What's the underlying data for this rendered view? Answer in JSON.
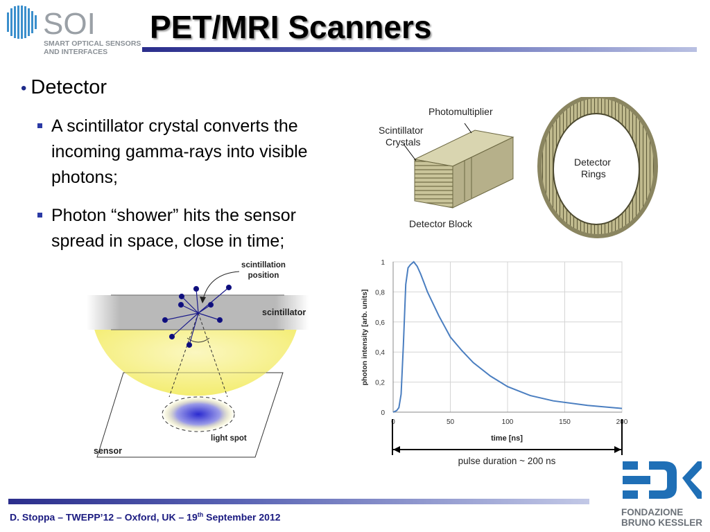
{
  "slide": {
    "title": "PET/MRI Scanners",
    "bullet": "Detector",
    "subbullets": [
      {
        "lines": [
          "A scintillator crystal converts the",
          "incoming gamma-rays into visible",
          "photons;"
        ]
      },
      {
        "lines": [
          "Photon “shower” hits the sensor",
          "spread in space, close in time;"
        ]
      }
    ],
    "footer": {
      "prefix": "D. Stoppa – TWEPP’12 – Oxford, UK –  19",
      "sup": "th",
      "suffix": " September 2012"
    }
  },
  "logos": {
    "soi": {
      "mark": "SOI",
      "line1": "SMART OPTICAL SENSORS",
      "line2": "AND INTERFACES"
    },
    "fbk": {
      "line1": "FONDAZIONE",
      "line2": "BRUNO KESSLER"
    }
  },
  "detector_figure": {
    "photomultiplier": "Photomultiplier",
    "crystals_l1": "Scintillator",
    "crystals_l2": "Crystals",
    "block": "Detector Block",
    "rings_l1": "Detector",
    "rings_l2": "Rings"
  },
  "light_figure": {
    "position_l1": "scintillation",
    "position_l2": "position",
    "scintillator": "scintillator",
    "light_spot": "light spot",
    "sensor": "sensor"
  },
  "chart_data": {
    "type": "line",
    "xlabel": "time [ns]",
    "ylabel": "photon intensity [arb. units]",
    "xlim": [
      0,
      200
    ],
    "ylim": [
      0,
      1
    ],
    "x_ticks": [
      0,
      50,
      100,
      150,
      200
    ],
    "y_ticks": [
      "0",
      "0,2",
      "0,4",
      "0,6",
      "0,8",
      "1"
    ],
    "grid": true,
    "annotation": "pulse duration ~ 200 ns",
    "series": [
      {
        "x": [
          0,
          3,
          5,
          7,
          9,
          11,
          13,
          15,
          18,
          21,
          24,
          27,
          30,
          35,
          40,
          45,
          50,
          60,
          70,
          85,
          100,
          120,
          140,
          170,
          200
        ],
        "y": [
          0.0,
          0.01,
          0.03,
          0.12,
          0.45,
          0.85,
          0.96,
          0.98,
          1.0,
          0.97,
          0.92,
          0.86,
          0.8,
          0.72,
          0.64,
          0.57,
          0.5,
          0.41,
          0.33,
          0.24,
          0.17,
          0.11,
          0.075,
          0.045,
          0.025
        ]
      }
    ]
  }
}
